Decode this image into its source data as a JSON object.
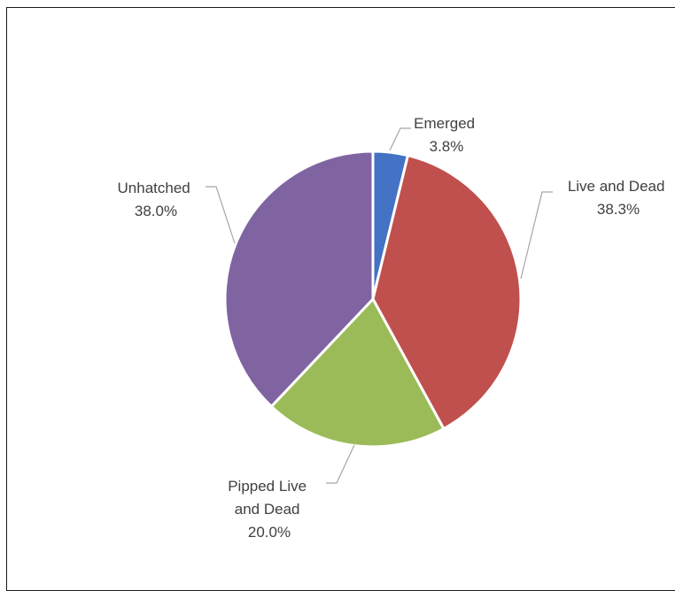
{
  "chart_data": {
    "type": "pie",
    "title": "",
    "slices": [
      {
        "label_lines": [
          "Emerged"
        ],
        "percent_label": "3.8%",
        "value": 3.8,
        "color": "#4472C4"
      },
      {
        "label_lines": [
          "Live and Dead"
        ],
        "percent_label": "38.3%",
        "value": 38.3,
        "color": "#C0504D"
      },
      {
        "label_lines": [
          "Pipped Live",
          "and Dead"
        ],
        "percent_label": "20.0%",
        "value": 20.0,
        "color": "#9BBB59"
      },
      {
        "label_lines": [
          "Unhatched"
        ],
        "percent_label": "38.0%",
        "value": 38.0,
        "color": "#8064A2"
      }
    ],
    "start_angle": "12 o'clock",
    "direction": "clockwise",
    "legend": "none",
    "data_labels": "outside with leader lines"
  }
}
